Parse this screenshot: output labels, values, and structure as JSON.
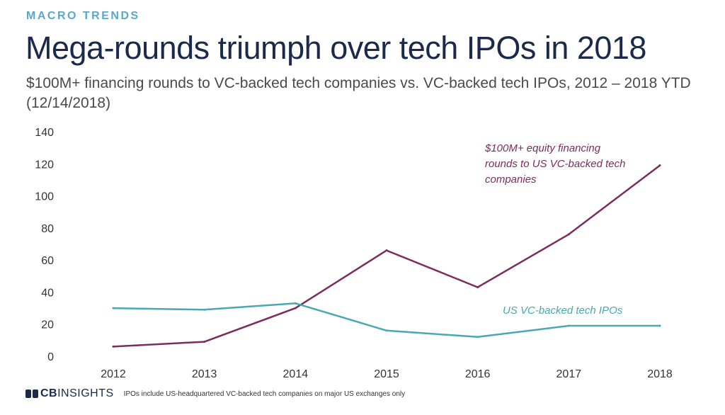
{
  "header": {
    "eyebrow": "MACRO TRENDS",
    "title": "Mega-rounds triumph over tech IPOs in 2018",
    "subtitle": "$100M+ financing rounds to VC-backed tech companies vs. VC-backed tech IPOs, 2012 – 2018 YTD (12/14/2018)"
  },
  "chart_data": {
    "type": "line",
    "title": "Mega-rounds triumph over tech IPOs in 2018",
    "subtitle": "$100M+ financing rounds to VC-backed tech companies vs. VC-backed tech IPOs, 2012 – 2018 YTD (12/14/2018)",
    "xlabel": "",
    "ylabel": "",
    "x": [
      "2012",
      "2013",
      "2014",
      "2015",
      "2016",
      "2017",
      "2018"
    ],
    "ylim": [
      0,
      140
    ],
    "yticks": [
      0,
      20,
      40,
      60,
      80,
      100,
      120,
      140
    ],
    "grid": false,
    "series": [
      {
        "name": "$100M+ equity financing rounds to US VC-backed tech companies",
        "label_lines": [
          "$100M+ equity financing",
          "rounds to US VC-backed tech",
          "companies"
        ],
        "color": "#7b2d5e",
        "values": [
          6,
          9,
          30,
          66,
          43,
          76,
          119
        ]
      },
      {
        "name": "US VC-backed tech IPOs",
        "label_lines": [
          "US VC-backed tech IPOs"
        ],
        "color": "#4aa8b0",
        "values": [
          30,
          29,
          33,
          16,
          12,
          19,
          19
        ]
      }
    ]
  },
  "footer": {
    "logo_bold": "CB",
    "logo_light": "INSIGHTS",
    "note": "IPOs include US-headquartered VC-backed tech companies on major US exchanges only"
  }
}
